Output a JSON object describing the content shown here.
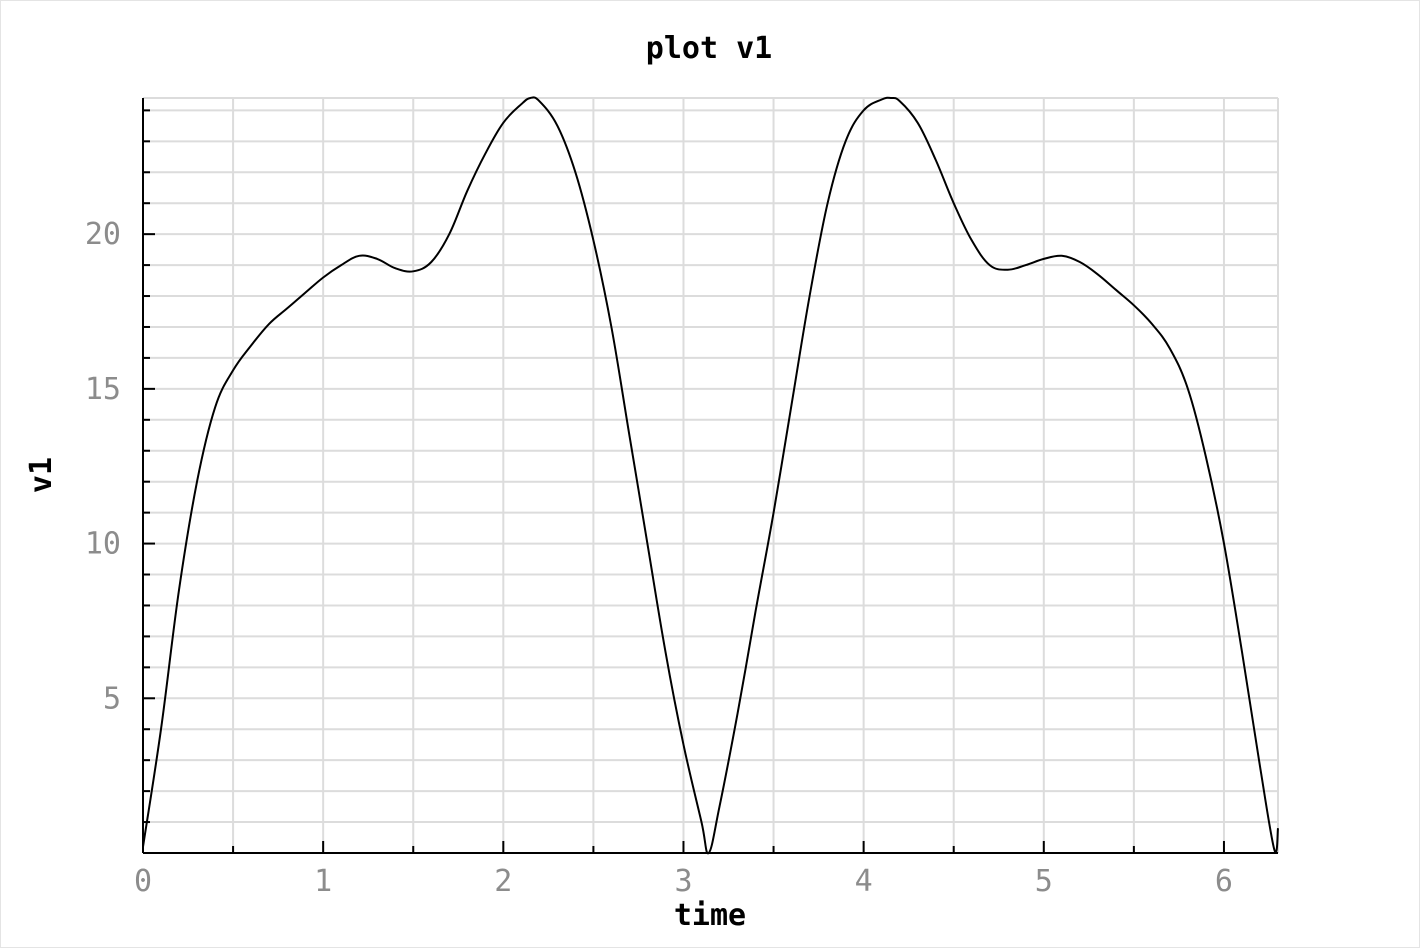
{
  "chart_data": {
    "type": "line",
    "title": "plot v1",
    "xlabel": "time",
    "ylabel": "v1",
    "xlim": [
      0,
      6.3
    ],
    "ylim": [
      0,
      24.4
    ],
    "grid": true,
    "x_ticks": [
      0,
      1,
      2,
      3,
      4,
      5,
      6
    ],
    "y_ticks": [
      5,
      10,
      15,
      20
    ],
    "x_minor_step": 0.5,
    "y_minor_step": 1,
    "series": [
      {
        "color": "#000000",
        "points": [
          [
            0.0,
            0.2
          ],
          [
            0.1,
            4.0
          ],
          [
            0.2,
            8.5
          ],
          [
            0.3,
            12.0
          ],
          [
            0.4,
            14.4
          ],
          [
            0.5,
            15.6
          ],
          [
            0.6,
            16.4
          ],
          [
            0.7,
            17.1
          ],
          [
            0.8,
            17.6
          ],
          [
            0.9,
            18.1
          ],
          [
            1.0,
            18.6
          ],
          [
            1.1,
            19.0
          ],
          [
            1.2,
            19.3
          ],
          [
            1.3,
            19.2
          ],
          [
            1.4,
            18.9
          ],
          [
            1.5,
            18.8
          ],
          [
            1.6,
            19.1
          ],
          [
            1.7,
            20.0
          ],
          [
            1.8,
            21.4
          ],
          [
            1.9,
            22.6
          ],
          [
            2.0,
            23.6
          ],
          [
            2.1,
            24.2
          ],
          [
            2.15,
            24.4
          ],
          [
            2.2,
            24.3
          ],
          [
            2.3,
            23.5
          ],
          [
            2.4,
            22.0
          ],
          [
            2.5,
            19.8
          ],
          [
            2.6,
            17.0
          ],
          [
            2.7,
            13.5
          ],
          [
            2.8,
            10.0
          ],
          [
            2.9,
            6.5
          ],
          [
            3.0,
            3.5
          ],
          [
            3.1,
            1.0
          ],
          [
            3.14,
            0.0
          ],
          [
            3.2,
            1.5
          ],
          [
            3.3,
            4.5
          ],
          [
            3.4,
            7.8
          ],
          [
            3.5,
            11.0
          ],
          [
            3.6,
            14.5
          ],
          [
            3.7,
            18.0
          ],
          [
            3.8,
            21.0
          ],
          [
            3.9,
            23.0
          ],
          [
            4.0,
            24.0
          ],
          [
            4.1,
            24.35
          ],
          [
            4.15,
            24.4
          ],
          [
            4.2,
            24.3
          ],
          [
            4.3,
            23.6
          ],
          [
            4.4,
            22.4
          ],
          [
            4.5,
            21.0
          ],
          [
            4.6,
            19.8
          ],
          [
            4.7,
            19.0
          ],
          [
            4.8,
            18.85
          ],
          [
            4.9,
            19.0
          ],
          [
            5.0,
            19.2
          ],
          [
            5.1,
            19.3
          ],
          [
            5.2,
            19.1
          ],
          [
            5.3,
            18.7
          ],
          [
            5.4,
            18.2
          ],
          [
            5.5,
            17.7
          ],
          [
            5.6,
            17.1
          ],
          [
            5.7,
            16.3
          ],
          [
            5.8,
            15.0
          ],
          [
            5.9,
            12.8
          ],
          [
            6.0,
            10.0
          ],
          [
            6.1,
            6.5
          ],
          [
            6.2,
            2.8
          ],
          [
            6.28,
            0.1
          ],
          [
            6.3,
            0.8
          ]
        ]
      }
    ]
  }
}
